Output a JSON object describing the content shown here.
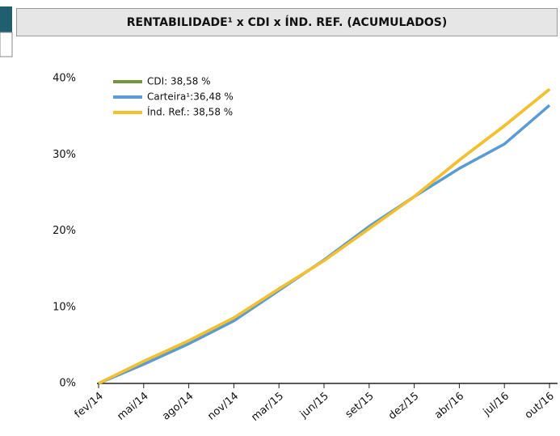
{
  "chart_data": {
    "type": "line",
    "title": "RENTABILIDADE¹ x CDI x ÍND. REF. (ACUMULADOS)",
    "categories": [
      "fev/14",
      "mai/14",
      "ago/14",
      "nov/14",
      "mar/15",
      "jun/15",
      "set/15",
      "dez/15",
      "abr/16",
      "jul/16",
      "out/16"
    ],
    "series": [
      {
        "name": "CDI: 38,58 %",
        "color": "#77933c",
        "values": [
          0,
          2.9,
          5.6,
          8.6,
          12.4,
          16.1,
          20.3,
          24.5,
          29.3,
          33.8,
          38.58
        ]
      },
      {
        "name": "Carteira¹:36,48 %",
        "color": "#5b9bd5",
        "values": [
          0,
          2.5,
          5.2,
          8.2,
          12.2,
          16.2,
          20.6,
          24.5,
          28.2,
          31.4,
          36.48
        ]
      },
      {
        "name": "Índ. Ref.: 38,58 %",
        "color": "#f5c02a",
        "values": [
          0,
          2.9,
          5.6,
          8.6,
          12.4,
          16.1,
          20.3,
          24.5,
          29.3,
          33.8,
          38.58
        ]
      }
    ],
    "ylim": [
      0,
      40
    ],
    "yticks": [
      {
        "value": 0,
        "label": "0%"
      },
      {
        "value": 10,
        "label": "10%"
      },
      {
        "value": 20,
        "label": "20%"
      },
      {
        "value": 30,
        "label": "30%"
      },
      {
        "value": 40,
        "label": "40%"
      }
    ],
    "grid": false,
    "legend": "top-left"
  }
}
